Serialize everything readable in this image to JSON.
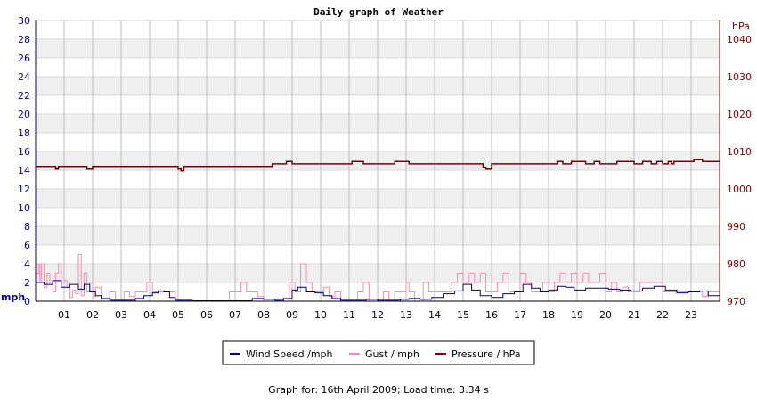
{
  "chart_data": {
    "type": "line",
    "title": "Daily graph of Weather",
    "x_tick_labels": [
      "01",
      "02",
      "03",
      "04",
      "05",
      "06",
      "07",
      "08",
      "09",
      "10",
      "11",
      "12",
      "13",
      "14",
      "15",
      "16",
      "17",
      "18",
      "19",
      "20",
      "21",
      "22",
      "23"
    ],
    "x_range_hours": [
      0,
      24
    ],
    "y_left": {
      "unit_label": "mph",
      "range": [
        0,
        30
      ],
      "tick_labels": [
        "0",
        "2",
        "4",
        "6",
        "8",
        "10",
        "12",
        "14",
        "16",
        "18",
        "20",
        "22",
        "24",
        "26",
        "28",
        "30"
      ]
    },
    "y_right": {
      "unit_label": "hPa",
      "range": [
        970,
        1045
      ],
      "tick_labels": [
        "970",
        "980",
        "990",
        "1000",
        "1010",
        "1020",
        "1030",
        "1040"
      ]
    },
    "grid": true,
    "legend_position": "bottom-center",
    "series": [
      {
        "name": "Wind Speed /mph",
        "axis": "left",
        "color": "#000080",
        "points": [
          [
            0,
            2
          ],
          [
            0.3,
            1.8
          ],
          [
            0.6,
            2.2
          ],
          [
            0.9,
            1.5
          ],
          [
            1.2,
            1.8
          ],
          [
            1.5,
            1.3
          ],
          [
            1.7,
            1.8
          ],
          [
            1.9,
            1
          ],
          [
            2.1,
            0.6
          ],
          [
            2.3,
            0.3
          ],
          [
            2.6,
            0.1
          ],
          [
            3,
            0.1
          ],
          [
            3.5,
            0.3
          ],
          [
            3.8,
            0.6
          ],
          [
            4.1,
            0.9
          ],
          [
            4.3,
            1.1
          ],
          [
            4.5,
            1
          ],
          [
            4.7,
            0.4
          ],
          [
            4.9,
            0.1
          ],
          [
            5.5,
            0.05
          ],
          [
            6.5,
            0.05
          ],
          [
            7.2,
            0.05
          ],
          [
            7.6,
            0.3
          ],
          [
            8,
            0.2
          ],
          [
            8.4,
            0.1
          ],
          [
            8.7,
            0.3
          ],
          [
            9,
            1.2
          ],
          [
            9.2,
            1.5
          ],
          [
            9.5,
            1
          ],
          [
            9.8,
            0.9
          ],
          [
            10.1,
            0.6
          ],
          [
            10.4,
            0.3
          ],
          [
            10.7,
            0.1
          ],
          [
            11.2,
            0.1
          ],
          [
            11.6,
            0.2
          ],
          [
            12,
            0.1
          ],
          [
            12.5,
            0.1
          ],
          [
            12.8,
            0.2
          ],
          [
            13.1,
            0.3
          ],
          [
            13.5,
            0.2
          ],
          [
            13.9,
            0.4
          ],
          [
            14.3,
            0.8
          ],
          [
            14.7,
            1.1
          ],
          [
            15,
            1.8
          ],
          [
            15.3,
            1.2
          ],
          [
            15.6,
            0.6
          ],
          [
            16,
            0.4
          ],
          [
            16.4,
            0.8
          ],
          [
            16.8,
            1
          ],
          [
            17.1,
            1.8
          ],
          [
            17.4,
            1.4
          ],
          [
            17.7,
            1
          ],
          [
            18,
            1.2
          ],
          [
            18.3,
            1.6
          ],
          [
            18.6,
            1.5
          ],
          [
            18.9,
            1.2
          ],
          [
            19.3,
            1.4
          ],
          [
            19.7,
            1.4
          ],
          [
            20.1,
            1.3
          ],
          [
            20.5,
            1.2
          ],
          [
            20.9,
            1.1
          ],
          [
            21.3,
            1.4
          ],
          [
            21.7,
            1.6
          ],
          [
            22.1,
            1.2
          ],
          [
            22.5,
            0.9
          ],
          [
            22.9,
            1
          ],
          [
            23.3,
            1.1
          ],
          [
            23.6,
            0.6
          ],
          [
            24,
            0.3
          ]
        ]
      },
      {
        "name": "Gust / mph",
        "axis": "left",
        "color": "#ff88aa",
        "points": [
          [
            0,
            3
          ],
          [
            0.1,
            4
          ],
          [
            0.15,
            2
          ],
          [
            0.2,
            4
          ],
          [
            0.3,
            1.5
          ],
          [
            0.4,
            3
          ],
          [
            0.5,
            2
          ],
          [
            0.6,
            1
          ],
          [
            0.7,
            3
          ],
          [
            0.8,
            4
          ],
          [
            0.9,
            2
          ],
          [
            1,
            2.2
          ],
          [
            1.1,
            1.5
          ],
          [
            1.2,
            0.4
          ],
          [
            1.3,
            1.2
          ],
          [
            1.4,
            0.8
          ],
          [
            1.5,
            5
          ],
          [
            1.6,
            0.6
          ],
          [
            1.7,
            3
          ],
          [
            1.8,
            1
          ],
          [
            1.9,
            2
          ],
          [
            2,
            0.5
          ],
          [
            2.1,
            1.5
          ],
          [
            2.3,
            0
          ],
          [
            2.6,
            1
          ],
          [
            2.8,
            0
          ],
          [
            3.1,
            1
          ],
          [
            3.3,
            0.5
          ],
          [
            3.5,
            1
          ],
          [
            3.7,
            1
          ],
          [
            3.9,
            2
          ],
          [
            4.1,
            1
          ],
          [
            4.3,
            1
          ],
          [
            4.5,
            1
          ],
          [
            4.7,
            1
          ],
          [
            4.9,
            0
          ],
          [
            6.5,
            0
          ],
          [
            6.8,
            1
          ],
          [
            7,
            1
          ],
          [
            7.2,
            2
          ],
          [
            7.4,
            1
          ],
          [
            7.6,
            1
          ],
          [
            7.8,
            0.5
          ],
          [
            8,
            0
          ],
          [
            8.8,
            0
          ],
          [
            8.9,
            2
          ],
          [
            9.1,
            1
          ],
          [
            9.3,
            4
          ],
          [
            9.5,
            2
          ],
          [
            9.7,
            1
          ],
          [
            9.9,
            1
          ],
          [
            10.1,
            1.5
          ],
          [
            10.3,
            0.5
          ],
          [
            10.5,
            1
          ],
          [
            10.7,
            0
          ],
          [
            11.1,
            0
          ],
          [
            11.3,
            1
          ],
          [
            11.5,
            2
          ],
          [
            11.7,
            0
          ],
          [
            12,
            0
          ],
          [
            12.2,
            1
          ],
          [
            12.4,
            0
          ],
          [
            12.6,
            1
          ],
          [
            12.8,
            1
          ],
          [
            13,
            2
          ],
          [
            13.1,
            1
          ],
          [
            13.3,
            0
          ],
          [
            13.6,
            2
          ],
          [
            13.8,
            1
          ],
          [
            14,
            1
          ],
          [
            14.3,
            1
          ],
          [
            14.6,
            2
          ],
          [
            14.8,
            3
          ],
          [
            15,
            2
          ],
          [
            15.2,
            3
          ],
          [
            15.4,
            2
          ],
          [
            15.6,
            3
          ],
          [
            15.8,
            1
          ],
          [
            16,
            1
          ],
          [
            16.2,
            2
          ],
          [
            16.4,
            3
          ],
          [
            16.6,
            1
          ],
          [
            16.8,
            1
          ],
          [
            17,
            3
          ],
          [
            17.2,
            2
          ],
          [
            17.4,
            1
          ],
          [
            17.6,
            1
          ],
          [
            17.8,
            2
          ],
          [
            18,
            1
          ],
          [
            18.2,
            2
          ],
          [
            18.4,
            3
          ],
          [
            18.6,
            2
          ],
          [
            18.8,
            3
          ],
          [
            19,
            2
          ],
          [
            19.2,
            3
          ],
          [
            19.4,
            2
          ],
          [
            19.6,
            2
          ],
          [
            19.8,
            3
          ],
          [
            20,
            1
          ],
          [
            20.2,
            2
          ],
          [
            20.4,
            1
          ],
          [
            20.6,
            1.5
          ],
          [
            20.8,
            1
          ],
          [
            21,
            1
          ],
          [
            21.2,
            2
          ],
          [
            21.4,
            2
          ],
          [
            21.6,
            2
          ],
          [
            21.8,
            2
          ],
          [
            22,
            1
          ],
          [
            22.2,
            1
          ],
          [
            22.4,
            1
          ],
          [
            22.6,
            1
          ],
          [
            22.8,
            1
          ],
          [
            23,
            1
          ],
          [
            23.2,
            1
          ],
          [
            23.4,
            0.5
          ],
          [
            23.6,
            1
          ],
          [
            23.8,
            1
          ],
          [
            24,
            1
          ]
        ]
      },
      {
        "name": "Pressure / hPa",
        "axis": "right",
        "color": "#800000",
        "points": [
          [
            0,
            1006
          ],
          [
            0.6,
            1006
          ],
          [
            0.7,
            1005.3
          ],
          [
            0.8,
            1006
          ],
          [
            1.6,
            1006
          ],
          [
            1.8,
            1005.3
          ],
          [
            2,
            1006
          ],
          [
            4.9,
            1006
          ],
          [
            5,
            1005.3
          ],
          [
            5.1,
            1004.8
          ],
          [
            5.2,
            1006
          ],
          [
            8.1,
            1006
          ],
          [
            8.3,
            1006.7
          ],
          [
            8.6,
            1006.7
          ],
          [
            8.8,
            1007.3
          ],
          [
            9,
            1006.7
          ],
          [
            11,
            1006.7
          ],
          [
            11.1,
            1007.3
          ],
          [
            11.4,
            1007.3
          ],
          [
            11.5,
            1006.7
          ],
          [
            12.5,
            1006.7
          ],
          [
            12.6,
            1007.3
          ],
          [
            12.9,
            1007.3
          ],
          [
            13.1,
            1006.7
          ],
          [
            15.6,
            1006.7
          ],
          [
            15.7,
            1005.8
          ],
          [
            15.8,
            1005.3
          ],
          [
            16,
            1006.7
          ],
          [
            18.2,
            1006.7
          ],
          [
            18.3,
            1007.3
          ],
          [
            18.4,
            1007.3
          ],
          [
            18.5,
            1006.7
          ],
          [
            18.7,
            1006.7
          ],
          [
            18.8,
            1007.3
          ],
          [
            19.1,
            1007.3
          ],
          [
            19.3,
            1006.7
          ],
          [
            19.5,
            1006.7
          ],
          [
            19.6,
            1007.3
          ],
          [
            19.8,
            1006.7
          ],
          [
            20.3,
            1006.7
          ],
          [
            20.4,
            1007.3
          ],
          [
            20.9,
            1007.3
          ],
          [
            21,
            1006.7
          ],
          [
            21.2,
            1006.7
          ],
          [
            21.3,
            1007.3
          ],
          [
            21.5,
            1007.3
          ],
          [
            21.6,
            1006.7
          ],
          [
            21.7,
            1006.7
          ],
          [
            21.8,
            1007.3
          ],
          [
            21.9,
            1007.3
          ],
          [
            22,
            1006.7
          ],
          [
            22.1,
            1006.7
          ],
          [
            22.2,
            1007.3
          ],
          [
            22.3,
            1006.7
          ],
          [
            22.4,
            1007.3
          ],
          [
            23,
            1007.3
          ],
          [
            23.1,
            1007.9
          ],
          [
            23.3,
            1007.9
          ],
          [
            23.4,
            1007.3
          ],
          [
            24,
            1007.3
          ]
        ]
      }
    ]
  },
  "footer": {
    "text": "Graph for: 16th April 2009; Load time: 3.34 s"
  }
}
